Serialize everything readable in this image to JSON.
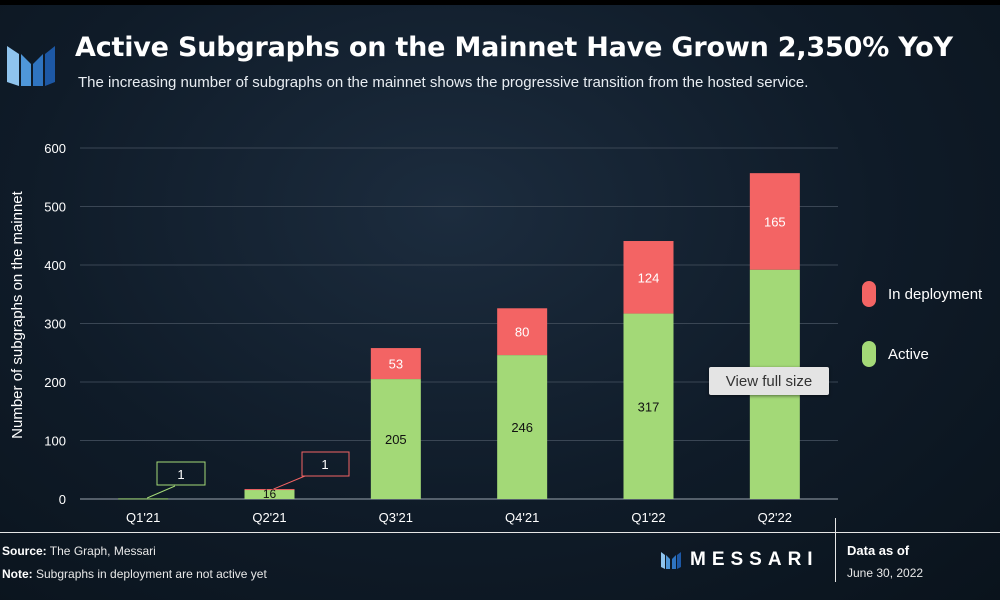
{
  "header": {
    "title": "Active Subgraphs on the Mainnet Have Grown 2,350% YoY",
    "subtitle": "The increasing number of subgraphs on the mainnet shows the progressive transition from the hosted service."
  },
  "chart_data": {
    "type": "bar",
    "stacked": true,
    "categories": [
      "Q1'21",
      "Q2'21",
      "Q3'21",
      "Q4'21",
      "Q1'22",
      "Q2'22"
    ],
    "series": [
      {
        "name": "Active",
        "values": [
          1,
          16,
          205,
          246,
          317,
          392
        ],
        "labels": [
          "1",
          "16",
          "205",
          "246",
          "317",
          ""
        ],
        "color": "#a3d977"
      },
      {
        "name": "In deployment",
        "values": [
          0,
          1,
          53,
          80,
          124,
          165
        ],
        "labels": [
          "",
          "1",
          "53",
          "80",
          "124",
          "165"
        ],
        "color": "#f36464"
      }
    ],
    "ylabel": "Number of subgraphs on the mainnet",
    "xlabel": "",
    "ylim": [
      0,
      600
    ],
    "yticks": [
      0,
      100,
      200,
      300,
      400,
      500,
      600
    ],
    "grid": true,
    "legend_position": "right"
  },
  "tooltip": {
    "text": "View full size"
  },
  "footer": {
    "source_label": "Source:",
    "source_text": " The Graph, Messari",
    "note_label": "Note:",
    "note_text": " Subgraphs in deployment are not active yet",
    "brand": "MESSARI",
    "asof_label": "Data as of",
    "asof_date": "June 30, 2022"
  },
  "colors": {
    "active": "#a3d977",
    "deployment": "#f36464",
    "background": "#13202e",
    "grid": "#3a4654"
  },
  "icons": {
    "logo": "messari-logo-icon"
  }
}
